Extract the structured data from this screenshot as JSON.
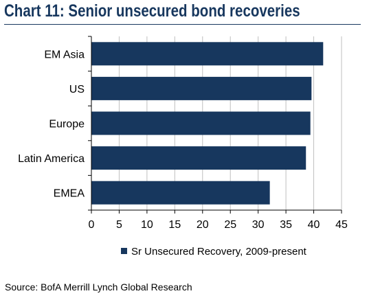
{
  "title": "Chart 11: Senior unsecured bond recoveries",
  "source": "Source: BofA Merrill Lynch Global Research",
  "colors": {
    "title": "#17375e",
    "bar": "#17375e",
    "grid": "#bfbfbf",
    "axis": "#000000"
  },
  "chart_data": {
    "type": "bar",
    "orientation": "horizontal",
    "categories": [
      "EM Asia",
      "US",
      "Europe",
      "Latin America",
      "EMEA"
    ],
    "series": [
      {
        "name": "Sr Unsecured Recovery, 2009-present",
        "values": [
          41.7,
          39.6,
          39.4,
          38.6,
          32.1
        ]
      }
    ],
    "xlim": [
      0,
      45
    ],
    "xticks": [
      "0",
      "5",
      "10",
      "15",
      "20",
      "25",
      "30",
      "35",
      "40",
      "45"
    ],
    "grid": true,
    "legend": "bottom"
  }
}
